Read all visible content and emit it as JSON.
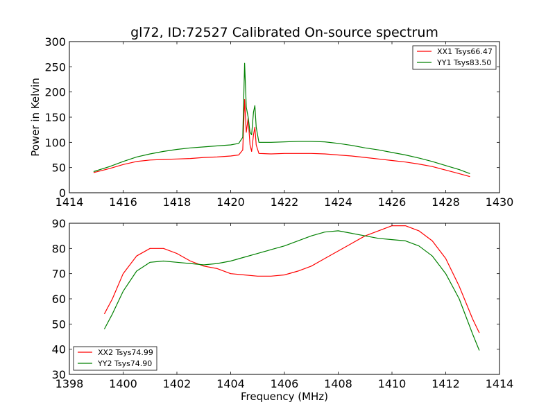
{
  "title": "gl72, ID:72527 Calibrated On-source spectrum",
  "chart_data": [
    {
      "type": "line",
      "ylabel": "Power in Kelvin",
      "xlabel": "",
      "xlim": [
        1414,
        1430
      ],
      "ylim": [
        0,
        300
      ],
      "xticks": [
        "1414",
        "1416",
        "1418",
        "1420",
        "1422",
        "1424",
        "1426",
        "1428",
        "1430"
      ],
      "yticks": [
        "0",
        "50",
        "100",
        "150",
        "200",
        "250",
        "300"
      ],
      "legend_position": "top-right",
      "series": [
        {
          "name": "XX1 Tsys66.47",
          "color": "#ff0000",
          "points": [
            [
              1414.9,
              40
            ],
            [
              1415.5,
              48
            ],
            [
              1416.0,
              56
            ],
            [
              1416.5,
              62
            ],
            [
              1417.0,
              65
            ],
            [
              1417.5,
              66
            ],
            [
              1418.0,
              67
            ],
            [
              1418.5,
              68
            ],
            [
              1419.0,
              70
            ],
            [
              1419.5,
              71
            ],
            [
              1420.0,
              73
            ],
            [
              1420.3,
              75
            ],
            [
              1420.45,
              85
            ],
            [
              1420.52,
              185
            ],
            [
              1420.58,
              120
            ],
            [
              1420.65,
              148
            ],
            [
              1420.72,
              95
            ],
            [
              1420.78,
              82
            ],
            [
              1420.85,
              115
            ],
            [
              1420.9,
              130
            ],
            [
              1420.95,
              95
            ],
            [
              1421.05,
              78
            ],
            [
              1421.5,
              77
            ],
            [
              1422.0,
              78
            ],
            [
              1422.5,
              78
            ],
            [
              1423.0,
              78
            ],
            [
              1423.5,
              77
            ],
            [
              1424.0,
              75
            ],
            [
              1424.5,
              73
            ],
            [
              1425.0,
              70
            ],
            [
              1425.5,
              67
            ],
            [
              1426.0,
              64
            ],
            [
              1426.5,
              61
            ],
            [
              1427.0,
              57
            ],
            [
              1427.5,
              52
            ],
            [
              1428.0,
              45
            ],
            [
              1428.5,
              38
            ],
            [
              1428.9,
              32
            ]
          ]
        },
        {
          "name": "YY1 Tsys83.50",
          "color": "#008000",
          "points": [
            [
              1414.9,
              42
            ],
            [
              1415.5,
              52
            ],
            [
              1416.0,
              62
            ],
            [
              1416.5,
              71
            ],
            [
              1417.0,
              77
            ],
            [
              1417.5,
              82
            ],
            [
              1418.0,
              86
            ],
            [
              1418.5,
              89
            ],
            [
              1419.0,
              91
            ],
            [
              1419.5,
              93
            ],
            [
              1420.0,
              95
            ],
            [
              1420.3,
              98
            ],
            [
              1420.45,
              110
            ],
            [
              1420.52,
              257
            ],
            [
              1420.58,
              170
            ],
            [
              1420.65,
              150
            ],
            [
              1420.72,
              120
            ],
            [
              1420.78,
              115
            ],
            [
              1420.85,
              160
            ],
            [
              1420.9,
              173
            ],
            [
              1420.95,
              130
            ],
            [
              1421.05,
              100
            ],
            [
              1421.5,
              100
            ],
            [
              1422.0,
              101
            ],
            [
              1422.5,
              102
            ],
            [
              1423.0,
              102
            ],
            [
              1423.5,
              101
            ],
            [
              1424.0,
              98
            ],
            [
              1424.5,
              94
            ],
            [
              1425.0,
              89
            ],
            [
              1425.5,
              85
            ],
            [
              1426.0,
              80
            ],
            [
              1426.5,
              75
            ],
            [
              1427.0,
              69
            ],
            [
              1427.5,
              62
            ],
            [
              1428.0,
              54
            ],
            [
              1428.5,
              46
            ],
            [
              1428.9,
              38
            ]
          ]
        }
      ]
    },
    {
      "type": "line",
      "ylabel": "",
      "xlabel": "Frequency (MHz)",
      "xlim": [
        1398,
        1414
      ],
      "ylim": [
        30,
        90
      ],
      "xticks": [
        "1398",
        "1400",
        "1402",
        "1404",
        "1406",
        "1408",
        "1410",
        "1412",
        "1414"
      ],
      "yticks": [
        "30",
        "40",
        "50",
        "60",
        "70",
        "80",
        "90"
      ],
      "legend_position": "bottom-left",
      "series": [
        {
          "name": "XX2 Tsys74.99",
          "color": "#ff0000",
          "points": [
            [
              1399.3,
              54
            ],
            [
              1399.6,
              60
            ],
            [
              1400.0,
              70
            ],
            [
              1400.5,
              77
            ],
            [
              1401.0,
              80
            ],
            [
              1401.5,
              80
            ],
            [
              1402.0,
              78
            ],
            [
              1402.5,
              75
            ],
            [
              1403.0,
              73
            ],
            [
              1403.5,
              72
            ],
            [
              1404.0,
              70
            ],
            [
              1404.5,
              69.5
            ],
            [
              1405.0,
              69
            ],
            [
              1405.5,
              69
            ],
            [
              1406.0,
              69.5
            ],
            [
              1406.5,
              71
            ],
            [
              1407.0,
              73
            ],
            [
              1407.5,
              76
            ],
            [
              1408.0,
              79
            ],
            [
              1408.5,
              82
            ],
            [
              1409.0,
              85
            ],
            [
              1409.5,
              87
            ],
            [
              1410.0,
              89
            ],
            [
              1410.5,
              89
            ],
            [
              1411.0,
              87
            ],
            [
              1411.5,
              83
            ],
            [
              1412.0,
              76
            ],
            [
              1412.5,
              65
            ],
            [
              1413.0,
              52
            ],
            [
              1413.25,
              46.5
            ]
          ]
        },
        {
          "name": "YY2 Tsys74.90",
          "color": "#008000",
          "points": [
            [
              1399.3,
              48
            ],
            [
              1399.6,
              54
            ],
            [
              1400.0,
              63
            ],
            [
              1400.5,
              71
            ],
            [
              1401.0,
              74.5
            ],
            [
              1401.5,
              75
            ],
            [
              1402.0,
              74.5
            ],
            [
              1402.5,
              74
            ],
            [
              1403.0,
              73.5
            ],
            [
              1403.5,
              74
            ],
            [
              1404.0,
              75
            ],
            [
              1404.5,
              76.5
            ],
            [
              1405.0,
              78
            ],
            [
              1405.5,
              79.5
            ],
            [
              1406.0,
              81
            ],
            [
              1406.5,
              83
            ],
            [
              1407.0,
              85
            ],
            [
              1407.5,
              86.5
            ],
            [
              1408.0,
              87
            ],
            [
              1408.5,
              86
            ],
            [
              1409.0,
              85
            ],
            [
              1409.5,
              84
            ],
            [
              1410.0,
              83.5
            ],
            [
              1410.5,
              83
            ],
            [
              1411.0,
              81
            ],
            [
              1411.5,
              77
            ],
            [
              1412.0,
              70
            ],
            [
              1412.5,
              60
            ],
            [
              1413.0,
              46
            ],
            [
              1413.25,
              39.5
            ]
          ]
        }
      ]
    }
  ]
}
